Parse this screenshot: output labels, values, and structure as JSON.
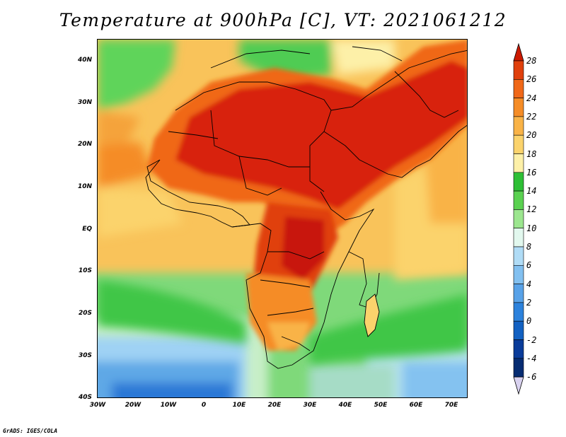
{
  "title": "Temperature at 900hPa [C], VT: 2021061212",
  "credit": "GrADS: IGES/COLA",
  "lat_labels": [
    "40N",
    "30N",
    "20N",
    "10N",
    "EQ",
    "10S",
    "20S",
    "30S",
    "40S"
  ],
  "lon_labels": [
    "30W",
    "20W",
    "10W",
    "0",
    "10E",
    "20E",
    "30E",
    "40E",
    "50E",
    "60E",
    "70E"
  ],
  "colorbar": {
    "levels": [
      "28",
      "26",
      "24",
      "22",
      "20",
      "18",
      "16",
      "14",
      "12",
      "10",
      "8",
      "6",
      "4",
      "2",
      "0",
      "-2",
      "-4",
      "-6"
    ],
    "colors": [
      "#cc1a00",
      "#e0400c",
      "#f06818",
      "#f58c26",
      "#f9b347",
      "#fbd36c",
      "#fdf0a8",
      "#2ebf35",
      "#5ad150",
      "#9ce68f",
      "#e2f8ee",
      "#b0dcf6",
      "#82c0f0",
      "#58a2e8",
      "#2c82dc",
      "#1261c2",
      "#0a3c9a",
      "#062c72",
      "#d9d2f0"
    ]
  }
}
